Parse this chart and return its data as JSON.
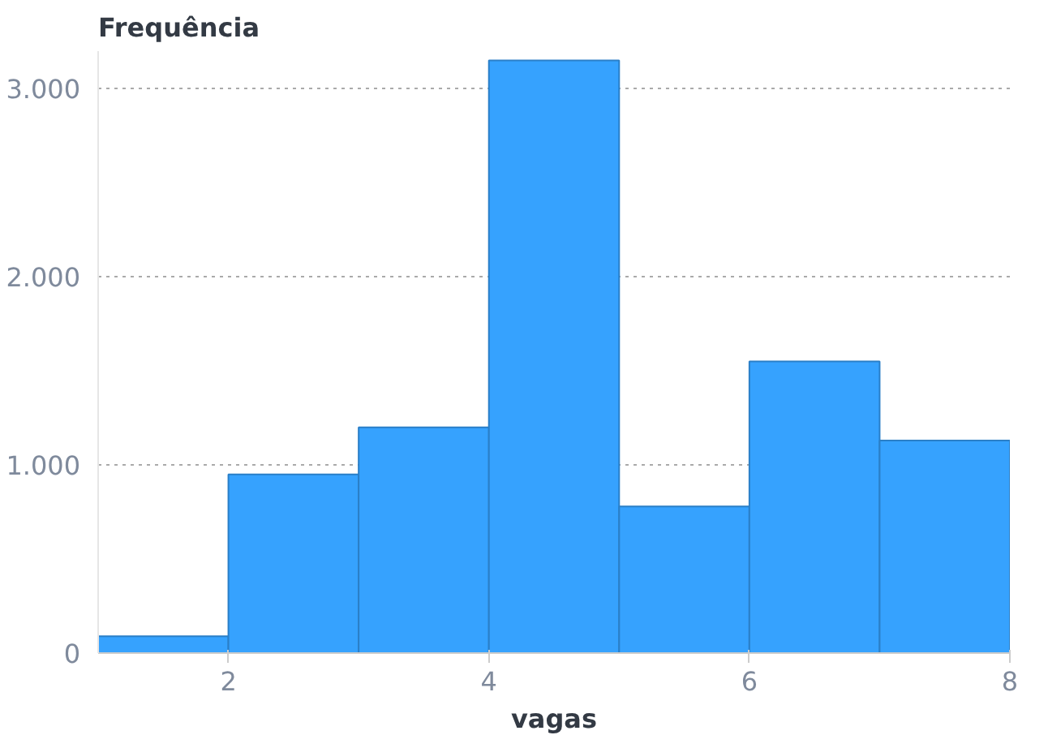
{
  "chart_data": {
    "type": "histogram",
    "xlabel": "vagas",
    "ylabel": "Frequência",
    "bins": [
      1,
      2,
      3,
      4,
      5,
      6,
      7,
      8
    ],
    "values": [
      90,
      950,
      1200,
      3150,
      780,
      1550,
      1130
    ],
    "color": "#36a2fe",
    "xlim": [
      1,
      8
    ],
    "xticks": [
      2,
      4,
      6,
      8
    ],
    "ylim": [
      0,
      3200
    ],
    "yticks": [
      {
        "value": 0,
        "label": "0"
      },
      {
        "value": 1000,
        "label": "1.000"
      },
      {
        "value": 2000,
        "label": "2.000"
      },
      {
        "value": 3000,
        "label": "3.000"
      }
    ],
    "grid": "y"
  }
}
